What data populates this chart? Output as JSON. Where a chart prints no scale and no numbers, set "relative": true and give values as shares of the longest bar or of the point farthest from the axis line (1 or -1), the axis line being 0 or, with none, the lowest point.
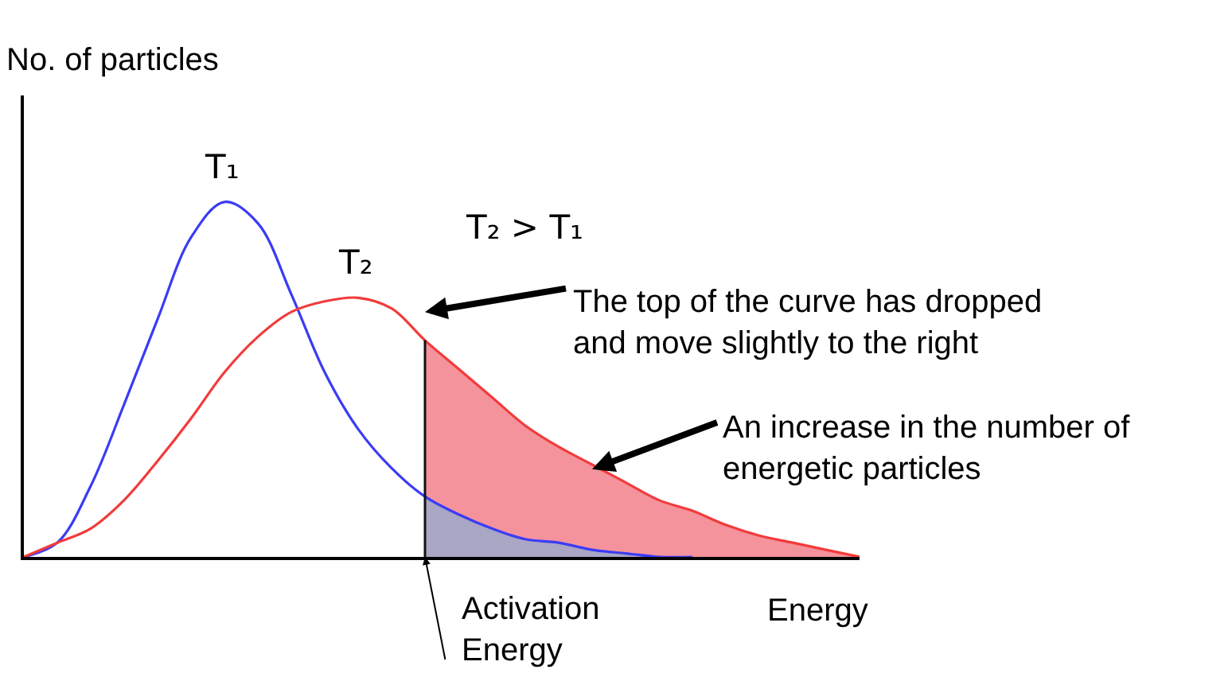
{
  "chart_data": {
    "type": "line",
    "title": "T₂ > T₁",
    "xlabel": "Energy",
    "ylabel": "No. of particles",
    "relative": true,
    "categories": [
      null,
      null,
      null,
      null,
      null,
      null,
      null,
      null,
      null,
      null,
      null,
      null,
      null,
      null,
      null,
      null,
      null,
      null,
      null,
      null,
      null,
      null,
      null,
      null,
      null,
      null
    ],
    "series": [
      {
        "type": "area",
        "color": "#f4939c",
        "values": [
          null,
          null,
          null,
          null,
          null,
          null,
          null,
          null,
          null,
          null,
          null,
          null,
          0.61,
          0.53,
          0.45,
          0.37,
          0.31,
          0.26,
          0.21,
          0.16,
          0.13,
          0.09,
          0.06,
          0.04,
          0.02,
          0
        ]
      },
      {
        "type": "area",
        "color": "#a9a6c6",
        "values": [
          null,
          null,
          null,
          null,
          null,
          null,
          null,
          null,
          null,
          null,
          null,
          null,
          0.17,
          0.12,
          0.08,
          0.05,
          0.04,
          0.02,
          0.01,
          0,
          0,
          null,
          null,
          null,
          null,
          null
        ]
      },
      {
        "type": "line",
        "name": "T₁",
        "color": "#3b3bf5",
        "values": [
          0,
          0.04,
          0.2,
          0.43,
          0.67,
          0.9,
          1,
          0.94,
          0.74,
          0.52,
          0.36,
          0.25,
          0.17,
          0.12,
          0.08,
          0.05,
          0.04,
          0.02,
          0.01,
          0,
          0,
          null,
          null,
          null,
          null,
          null
        ]
      },
      {
        "type": "line",
        "name": "T₂",
        "color": "#f23b3b",
        "values": [
          0,
          0.04,
          0.08,
          0.16,
          0.27,
          0.39,
          0.52,
          0.62,
          0.69,
          0.72,
          0.73,
          0.7,
          0.61,
          0.53,
          0.45,
          0.37,
          0.31,
          0.26,
          0.21,
          0.16,
          0.13,
          0.09,
          0.06,
          0.04,
          0.02,
          0
        ]
      }
    ],
    "annotations": [
      "The top of the curve has dropped and move slightly to the right",
      "An increase in the number of energetic particles",
      "Activation Energy"
    ]
  }
}
